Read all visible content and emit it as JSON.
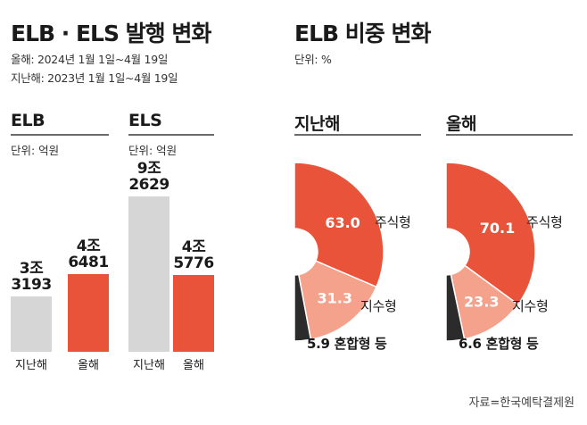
{
  "left": {
    "title": "ELB · ELS 발행 변화",
    "period_this": "올해: 2024년 1월 1일~4월 19일",
    "period_last": "지난해: 2023년 1월 1일~4월 19일"
  },
  "right": {
    "title": "ELB 비중 변화",
    "unit": "단위: %"
  },
  "colors": {
    "last_year": "#d6d6d6",
    "this_year": "#e8533a",
    "index": "#f4a28c",
    "other": "#2b2b2b"
  },
  "source": "자료=한국예탁결제원",
  "chart_data": [
    {
      "type": "bar",
      "title": "ELB",
      "unit": "단위: 억원",
      "categories": [
        "지난해",
        "올해"
      ],
      "values": [
        33193,
        46481
      ],
      "value_labels": [
        [
          "3조",
          "3193"
        ],
        [
          "4조",
          "6481"
        ]
      ]
    },
    {
      "type": "bar",
      "title": "ELS",
      "unit": "단위: 억원",
      "categories": [
        "지난해",
        "올해"
      ],
      "values": [
        92629,
        45776
      ],
      "value_labels": [
        [
          "9조",
          "2629"
        ],
        [
          "4조",
          "5776"
        ]
      ]
    },
    {
      "type": "pie",
      "title": "지난해",
      "slices": [
        {
          "label": "주식형",
          "value": 63.0,
          "display": "63.0"
        },
        {
          "label": "지수형",
          "value": 31.3,
          "display": "31.3"
        },
        {
          "label": "혼합형 등",
          "value": 5.9,
          "display": "5.9"
        }
      ]
    },
    {
      "type": "pie",
      "title": "올해",
      "slices": [
        {
          "label": "주식형",
          "value": 70.1,
          "display": "70.1"
        },
        {
          "label": "지수형",
          "value": 23.3,
          "display": "23.3"
        },
        {
          "label": "혼합형 등",
          "value": 6.6,
          "display": "6.6"
        }
      ]
    }
  ]
}
